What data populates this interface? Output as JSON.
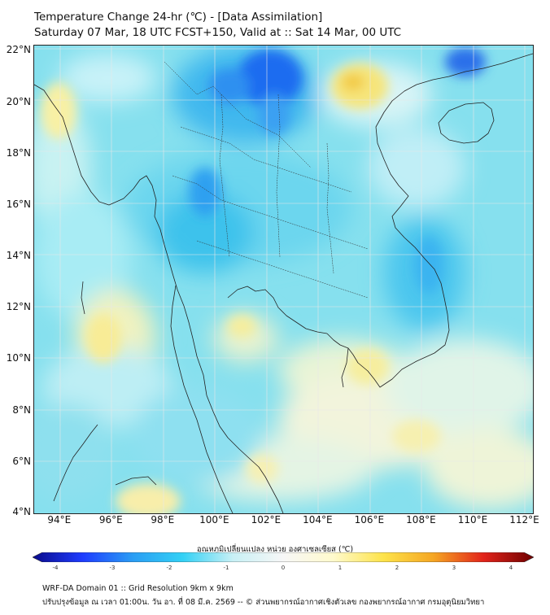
{
  "title": {
    "line1": "Temperature Change 24-hr (℃) - [Data Assimilation]",
    "line2": "Saturday 07 Mar, 18 UTC FCST+150, Valid at :: Sat 14 Mar, 00 UTC"
  },
  "map": {
    "lat_ticks": [
      "22°N",
      "20°N",
      "18°N",
      "16°N",
      "14°N",
      "12°N",
      "10°N",
      "8°N",
      "6°N",
      "4°N"
    ],
    "lon_ticks": [
      "94°E",
      "96°E",
      "98°E",
      "100°E",
      "102°E",
      "104°E",
      "106°E",
      "108°E",
      "110°E",
      "112°E"
    ],
    "extent": {
      "lon_min": 93,
      "lon_max": 112.3,
      "lat_min": 4,
      "lat_max": 22.2
    }
  },
  "colorbar": {
    "title": "อุณหภูมิเปลี่ยนแปลง หน่วย องศาเซลเซียส (℃)",
    "ticks": [
      "-4",
      "-3",
      "-2",
      "-1",
      "0",
      "1",
      "2",
      "3",
      "4"
    ],
    "colors": [
      "#0a0a8a",
      "#1e3cff",
      "#2a9df4",
      "#33d1f5",
      "#c8f0f5",
      "#f7f7f7",
      "#fffacd",
      "#fde34a",
      "#f5a623",
      "#e2231a",
      "#6e0000"
    ]
  },
  "footer": {
    "line1": "WRF-DA Domain 01 :: Grid Resolution 9km x 9km",
    "line2": "ปรับปรุงข้อมูล ณ เวลา 01:00น. วัน อา. ที่ 08 มี.ค. 2569 -- © ส่วนพยากรณ์อากาศเชิงตัวเลข กองพยากรณ์อากาศ กรมอุตุนิยมวิทยา"
  }
}
